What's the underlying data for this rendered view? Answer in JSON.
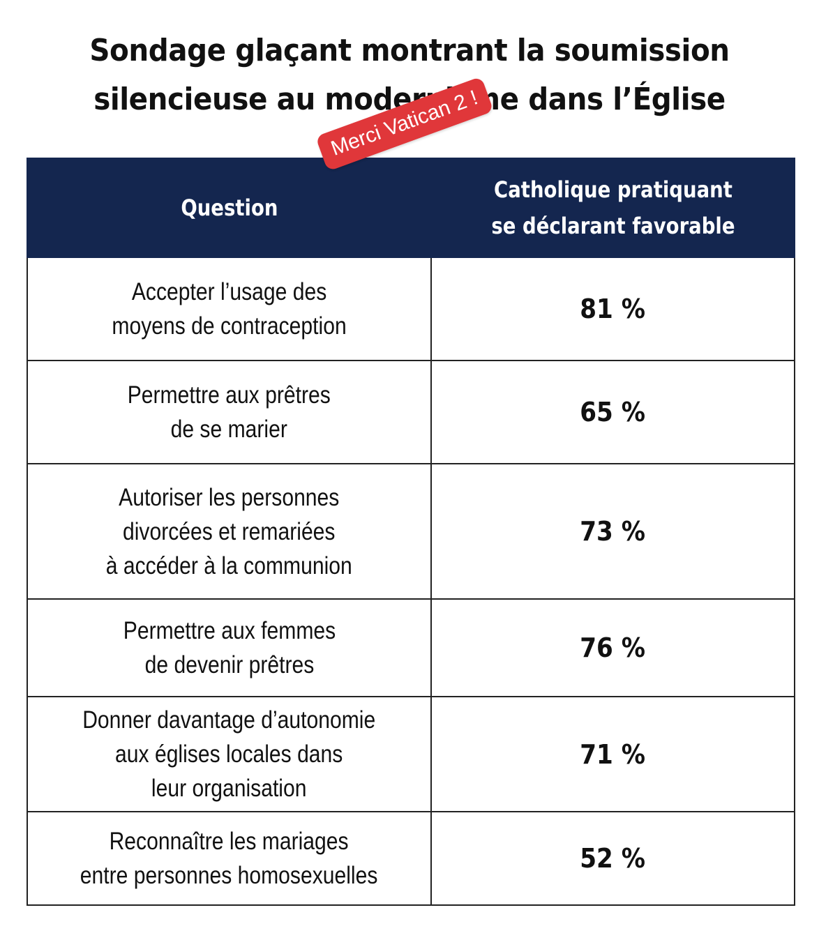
{
  "title": {
    "line1": "Sondage glaçant montrant la soumission",
    "line2": "silencieuse au modernisme dans l’Église"
  },
  "sticker": {
    "text": "Merci Vatican 2 !",
    "color": "#e0373a"
  },
  "colors": {
    "header_bg": "#14264f",
    "header_text": "#ffffff",
    "border": "#222222"
  },
  "chart_data": {
    "type": "table",
    "columns": [
      {
        "lines": [
          "Question"
        ]
      },
      {
        "lines": [
          "Catholique pratiquant",
          "se déclarant favorable"
        ]
      }
    ],
    "rows": [
      {
        "question_lines": [
          "Accepter l’usage des",
          "moyens de contraception"
        ],
        "value": 81,
        "value_label": "81 %"
      },
      {
        "question_lines": [
          "Permettre aux prêtres",
          "de se marier"
        ],
        "value": 65,
        "value_label": "65 %"
      },
      {
        "question_lines": [
          "Autoriser les personnes",
          "divorcées et remariées",
          "à accéder à la communion"
        ],
        "value": 73,
        "value_label": "73 %"
      },
      {
        "question_lines": [
          "Permettre aux femmes",
          "de devenir prêtres"
        ],
        "value": 76,
        "value_label": "76 %"
      },
      {
        "question_lines": [
          "Donner davantage d’autonomie",
          "aux églises locales dans",
          "leur organisation"
        ],
        "value": 71,
        "value_label": "71 %"
      },
      {
        "question_lines": [
          "Reconnaître les mariages",
          "entre personnes homosexuelles"
        ],
        "value": 52,
        "value_label": "52 %"
      }
    ]
  }
}
